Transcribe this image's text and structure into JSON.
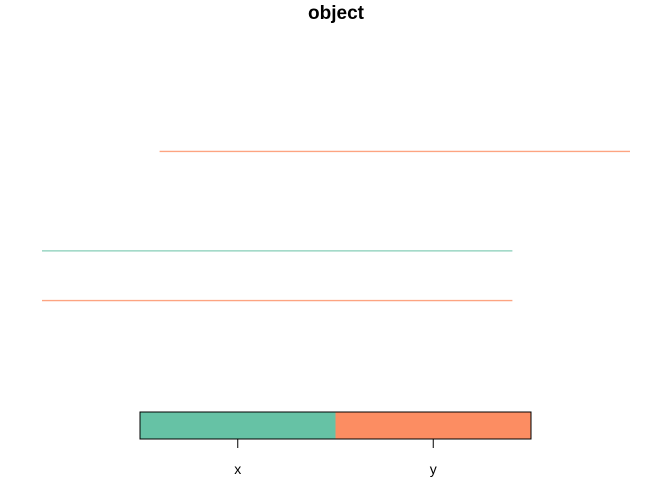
{
  "chart_data": {
    "type": "line",
    "title": "object",
    "xlabel": "",
    "ylabel": "",
    "legend_position": "bottom",
    "grid": false,
    "categories": [
      "x",
      "y"
    ],
    "colors": {
      "x": "#66c2a5",
      "y": "#fc8d62"
    },
    "series": [
      {
        "category": "y",
        "x_start": 0.25,
        "x_end": 1.25,
        "y": 4
      },
      {
        "category": "x",
        "x_start": 0,
        "x_end": 1,
        "y": 2
      },
      {
        "category": "y",
        "x_start": 0,
        "x_end": 1,
        "y": 1
      }
    ],
    "xlim": [
      0,
      1.25
    ],
    "ylim": [
      -1,
      6
    ]
  }
}
